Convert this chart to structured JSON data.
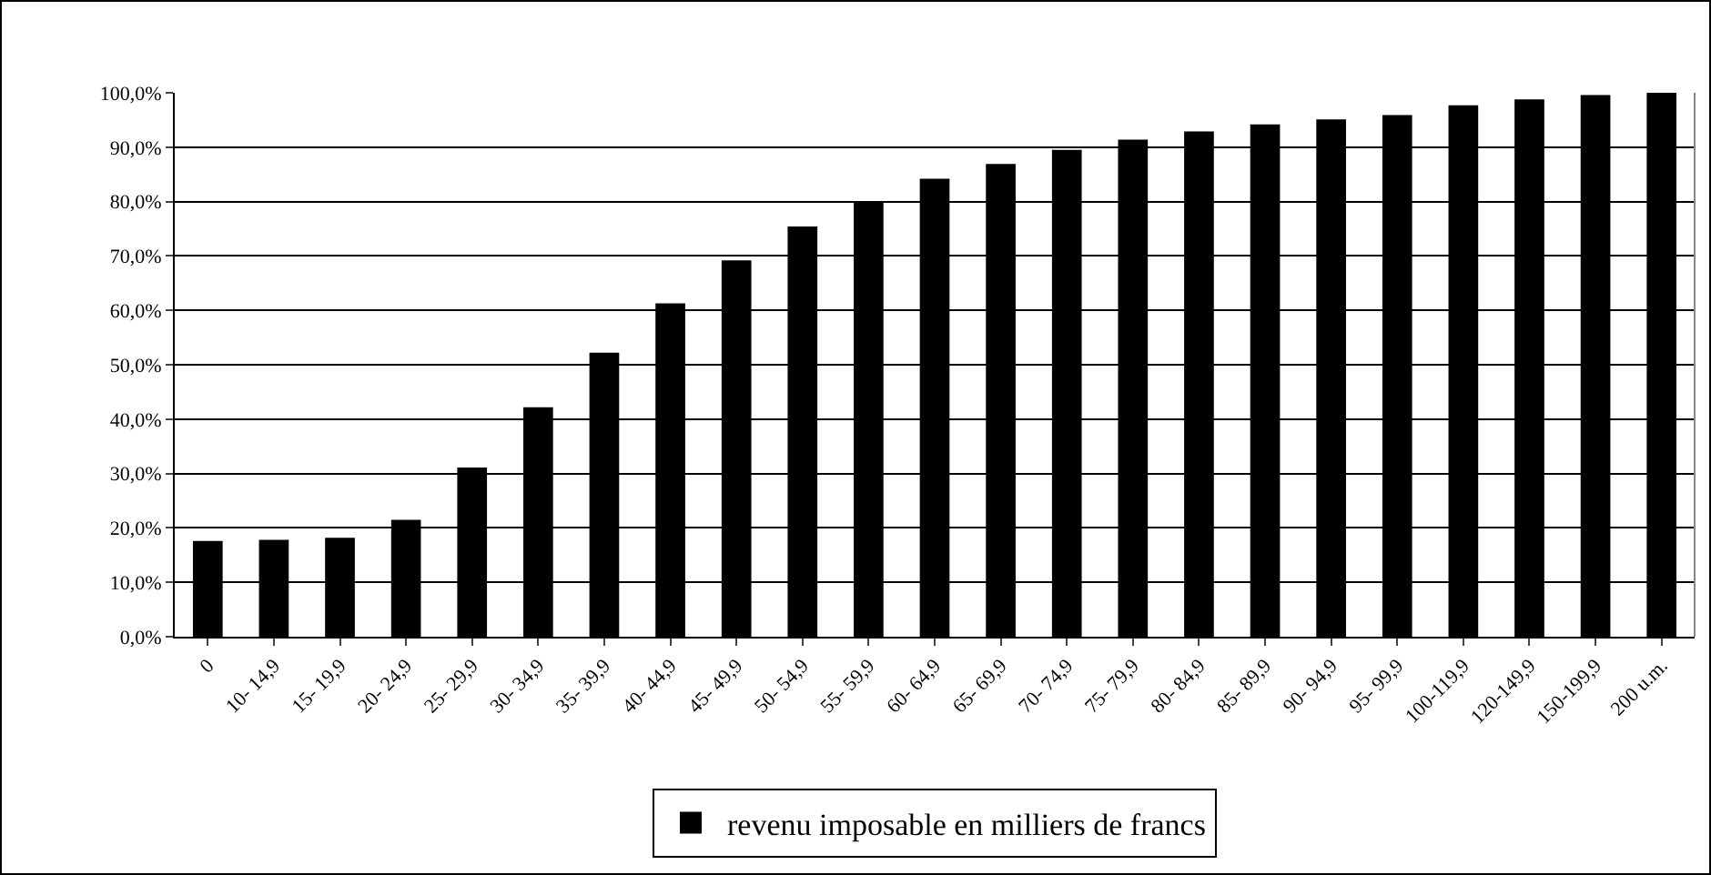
{
  "chart_data": {
    "type": "bar",
    "categories": [
      "0",
      "10- 14,9",
      "15- 19,9",
      "20- 24,9",
      "25- 29,9",
      "30- 34,9",
      "35- 39,9",
      "40- 44,9",
      "45- 49,9",
      "50- 54,9",
      "55- 59,9",
      "60- 64,9",
      "65- 69,9",
      "70- 74,9",
      "75- 79,9",
      "80- 84,9",
      "85- 89,9",
      "90- 94,9",
      "95- 99,9",
      "100-119,9",
      "120-149,9",
      "150-199,9",
      "200 u.m."
    ],
    "series": [
      {
        "name": "revenu imposable en milliers de francs",
        "color": "#000000",
        "values": [
          17.6,
          17.8,
          18.2,
          21.5,
          31.1,
          42.2,
          52.2,
          61.3,
          69.2,
          75.4,
          80.1,
          84.2,
          86.9,
          89.5,
          91.4,
          92.9,
          94.2,
          95.1,
          95.9,
          97.7,
          98.8,
          99.6,
          100
        ]
      }
    ],
    "ylim": [
      0,
      100
    ],
    "yticks": [
      {
        "value": 0,
        "label": "0,0%"
      },
      {
        "value": 10,
        "label": "10,0%"
      },
      {
        "value": 20,
        "label": "20,0%"
      },
      {
        "value": 30,
        "label": "30,0%"
      },
      {
        "value": 40,
        "label": "40,0%"
      },
      {
        "value": 50,
        "label": "50,0%"
      },
      {
        "value": 60,
        "label": "60,0%"
      },
      {
        "value": 70,
        "label": "70,0%"
      },
      {
        "value": 80,
        "label": "80,0%"
      },
      {
        "value": 90,
        "label": "90,0%"
      },
      {
        "value": 100,
        "label": "100,0%"
      }
    ],
    "grid": "y",
    "legend": "bottom"
  }
}
